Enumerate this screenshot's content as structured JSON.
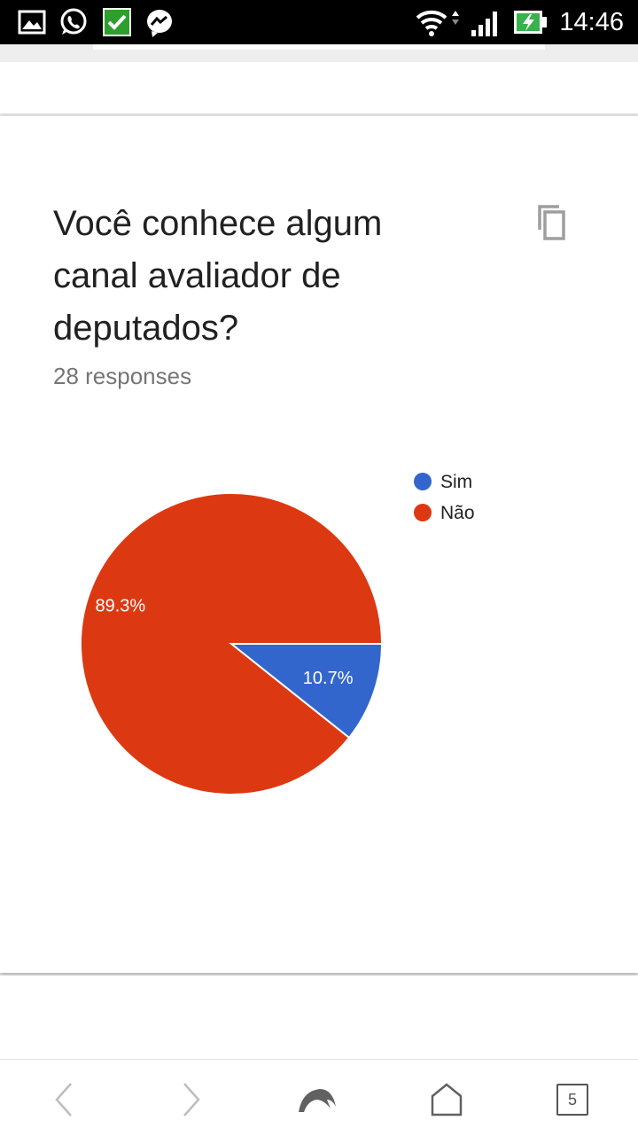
{
  "status_bar": {
    "time": "14:46",
    "left_icons": [
      "gallery-icon",
      "whatsapp-icon",
      "checkbox-icon",
      "messenger-icon"
    ],
    "right_icons": [
      "wifi-icon",
      "signal-icon",
      "battery-charging-icon"
    ]
  },
  "question": {
    "title": "Você conhece algum canal avaliador de deputados?",
    "responses": "28 responses"
  },
  "chart_data": {
    "type": "pie",
    "categories": [
      "Sim",
      "Não"
    ],
    "values": [
      10.7,
      89.3
    ],
    "labels": [
      "10.7%",
      "89.3%"
    ],
    "colors": [
      "#3366cc",
      "#dc3912"
    ],
    "legend_position": "top-right"
  },
  "nav": {
    "tab_count": "5",
    "icons": [
      "back-arrow-icon",
      "forward-arrow-icon",
      "dolphin-icon",
      "home-icon",
      "tabs-icon"
    ]
  }
}
